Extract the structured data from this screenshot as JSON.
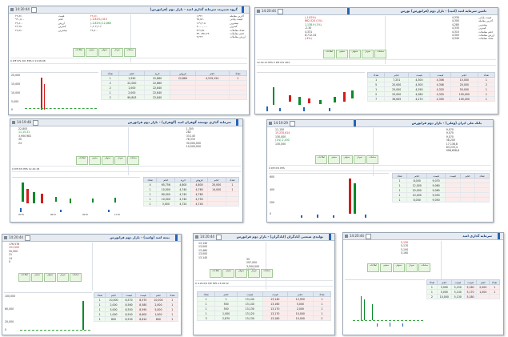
{
  "panels": [
    {
      "id": "p1",
      "time": "14:20:44",
      "title": "گروه مدیریت سرمایه گذاری امید - بازار دوم (فرابورس)",
      "session": "14:20:44"
    },
    {
      "id": "p2",
      "time": "14:20:44",
      "title": "تامین سرمایه امید (امید) - بازار دوم (فرابورس) بورس",
      "session": "14:20:44"
    },
    {
      "id": "p3",
      "time": "14:19:48",
      "title": "سرمایه گذاری توسعه گوهران امید (گوهران) - بازار دوم فرابورس",
      "session": "14:19:48"
    },
    {
      "id": "p4",
      "time": "14:19:29",
      "title": "بانک ملی ایران (وملی) - بازار دوم فرابورس",
      "session": "14:19:29"
    },
    {
      "id": "p5",
      "time": "14:20:44",
      "title": "بیمه امید (وامید) - بازار دوم فرابورس",
      "session": "14:20:44"
    },
    {
      "id": "p6",
      "time": "14:20:44",
      "title": "تولیدی صنعتی آبادگران (ابادگران) - بازار دوم فرابورس",
      "session": "14:20:44"
    },
    {
      "id": "p7",
      "time": "14:20:44",
      "title": "سرمایه گذاری امید",
      "session": "14:20:44"
    }
  ],
  "p1": {
    "left": [
      "قیمت",
      "حجم",
      "ارزش",
      "کمترین",
      "بیشترین"
    ],
    "leftVals": [
      "۲۲,۸۶۰",
      "۹۹۰,۵۰۰",
      "۲۲,۸۰۰",
      "۲۲,۹۸۰",
      "۲۲,۸۶۰"
    ],
    "midVals": [
      "۲۲,۸۶۰",
      "(-1.82%)  415",
      "(-1.82%) 12,860",
      "۱,۲۰۴,۲۰۲",
      "۲۲,۸۰۰"
    ],
    "right": [
      "آخرین معامله",
      "قیمت پایانی",
      "بیشترین",
      "کمترین",
      "تعداد معاملات",
      "حجم معاملات",
      "ارزش معاملات"
    ],
    "rightVals": [
      "۱,۳۲۱",
      "۲۵,۸۷۰",
      "۱۶۹,۴۰۵",
      "۳,۰۰۰,۰۰۰",
      "۳۶۹,۴۵۰",
      "۳۳۰,۳۵۶,۲۴۰",
      "۲,۲۲۲"
    ],
    "tabs": [
      "اطلاعات",
      "حقیقی",
      "حقوقی",
      "نمودار",
      "معاملات"
    ],
    "strip": "0   P/E   P/S   201   EPS   0   13.08.98",
    "obHead": [
      "تعداد",
      "حجم",
      "خرید",
      "فروش",
      "حجم",
      "تعداد"
    ],
    "obRows": [
      [
        "1",
        "1,590",
        "22,860",
        "22,860",
        "4,519,154",
        "1"
      ],
      [
        "2",
        "22,000",
        "22,860",
        "",
        "",
        ""
      ],
      [
        "2",
        "1,000",
        "22,840",
        "",
        "",
        ""
      ],
      [
        "1",
        "2,000",
        "22,840",
        "",
        "",
        ""
      ],
      [
        "2",
        "99,843",
        "22,840",
        "",
        "",
        ""
      ]
    ],
    "yticks": [
      "20,000",
      "15,000",
      "10,000",
      "5,000",
      "0"
    ]
  },
  "p2": {
    "left": [
      "قیمت پایانی",
      "آخرین معامله",
      "بیشترین",
      "کمترین",
      "حجم معاملات",
      "ارزش معاملات",
      "تعداد معاملات"
    ],
    "rightVals": [
      "4,330",
      "4,300",
      "4,280",
      "4,330",
      "4,310",
      "4,300",
      "4,340"
    ],
    "midVals": [
      "(-1.62%)",
      "862,524 (1%)",
      "1,138.9 (1%)",
      "-2.30",
      "4,331",
      "8,712.34",
      "(-4%)"
    ],
    "tabs": [
      "اطلاعات",
      "حقیقی",
      "حقوقی",
      "نمودار",
      "معاملات"
    ],
    "strip": "12.29.13   EPS   0   P/E   P/S   CR2",
    "obHead": [
      "تعداد",
      "حجم",
      "قیمت",
      "قیمت",
      "حجم",
      "تعداد"
    ],
    "obRows": [
      [
        "1",
        "7,251",
        "4,300",
        "4,306",
        "10,000",
        "1"
      ],
      [
        "5",
        "20,000",
        "4,300",
        "4,306",
        "20,000",
        "2"
      ],
      [
        "1",
        "25,000",
        "4,290",
        "4,320",
        "50,000",
        "1"
      ],
      [
        "2",
        "25,000",
        "4,280",
        "4,320",
        "100,000",
        "1"
      ],
      [
        "7",
        "36,645",
        "4,270",
        "4,300",
        "100,000",
        "1"
      ]
    ]
  },
  "p3": {
    "leftVals": [
      "22,805",
      "11,15,31",
      "3,950,981",
      "30",
      "24"
    ],
    "rightVals": [
      "1,305",
      "282",
      "33,145",
      "76,333",
      "30,000,000",
      "10,000,000"
    ],
    "tabs": [
      "اطلاعات",
      "حقیقی",
      "حقوقی",
      "نمودار",
      "معاملات"
    ],
    "strip": "0   P/E   P/S   EPS   12.29.18",
    "obHead": [
      "تعداد",
      "حجم",
      "خرید",
      "فروش",
      "حجم",
      "تعداد"
    ],
    "obRows": [
      [
        "4",
        "65,756",
        "4,800",
        "4,800",
        "20,000",
        "1"
      ],
      [
        "1",
        "10,000",
        "4,740",
        "4,760",
        "14,000",
        "1"
      ],
      [
        "1",
        "80,000",
        "4,740",
        "4,760",
        "",
        ""
      ],
      [
        "1",
        "10,000",
        "4,740",
        "4,750",
        "",
        ""
      ],
      [
        "1",
        "3,000",
        "4,720",
        "4,740",
        "",
        ""
      ]
    ],
    "xticks": [
      "05:55",
      "06:40",
      "07:15",
      "07:48",
      "08:15",
      "08:40",
      "09:05",
      "09:30",
      "09:55",
      "10:20",
      "10:45",
      "11:10",
      "11:35",
      "12:00",
      "12:25"
    ]
  },
  "p4": {
    "leftVals": [
      "11,150",
      "15,235,614",
      "130,000",
      "(1%) 2,430",
      "130,000"
    ],
    "rightVals": [
      "9,070",
      "9,070",
      "9,070",
      "38,200",
      "17,138,8",
      "83,233,4",
      "998,658,8"
    ],
    "tabs": [
      "اطلاعات",
      "حقیقی",
      "حقوقی",
      "نمودار",
      "معاملات"
    ],
    "strip": "0   P/E   P/S   EPS",
    "obHead": [
      "تعداد",
      "حجم",
      "قیمت",
      "قیمت",
      "حجم",
      "تعداد"
    ],
    "obRows": [
      [
        "1",
        "8,000",
        "9,070",
        "",
        "",
        ""
      ],
      [
        "1",
        "12,000",
        "9,060",
        "",
        "",
        ""
      ],
      [
        "1",
        "20,000",
        "9,060",
        "",
        "",
        ""
      ],
      [
        "1",
        "10,000",
        "9,050",
        "",
        "",
        ""
      ],
      [
        "1",
        "8,000",
        "9,050",
        "",
        "",
        ""
      ]
    ],
    "yticks": [
      "600",
      "500",
      "400",
      "300",
      "200",
      "100",
      "0"
    ]
  },
  "p5": {
    "leftVals": [
      "176,576",
      "151,000",
      "20,000",
      "21",
      "14",
      "0"
    ],
    "tabs": [
      "اطلاعات",
      "حقیقی",
      "حقوقی",
      "نمودار",
      "معاملات"
    ],
    "obHead": [
      "تعداد",
      "حجم",
      "قیمت",
      "قیمت",
      "حجم",
      "تعداد"
    ],
    "obRows": [
      [
        "1",
        "10,000",
        "8,570",
        "8,570",
        "10,000",
        "1"
      ],
      [
        "1",
        "2,000",
        "8,560",
        "8,580",
        "2,000",
        "1"
      ],
      [
        "1",
        "5,000",
        "8,550",
        "8,590",
        "5,000",
        "1"
      ],
      [
        "1",
        "1,000",
        "8,540",
        "8,600",
        "1,000",
        "1"
      ],
      [
        "1",
        "800",
        "8,530",
        "8,610",
        "800",
        "1"
      ]
    ],
    "yticks": [
      "100,000",
      "80,000",
      "60,000",
      "40,000",
      "20,000",
      "0"
    ]
  },
  "p6": {
    "leftVals": [
      "13,140",
      "13,000",
      "13,460",
      "13,000",
      "13,140"
    ],
    "rightVals": [
      "35",
      "297,000",
      "3,500,000",
      "10,000"
    ],
    "tabs": [
      "اطلاعات",
      "حقیقی",
      "حقوقی",
      "نمودار",
      "معاملات"
    ],
    "strip": "0   4.26   P/S   P/E   EPS   13.08.52",
    "obHead": [
      "تعداد",
      "حجم",
      "قیمت",
      "قیمت",
      "حجم",
      "تعداد"
    ],
    "obRows": [
      [
        "1",
        "1",
        "13,140",
        "13,140",
        "12,950",
        "1"
      ],
      [
        "1",
        "500",
        "13,140",
        "13,160",
        "5,000",
        "1"
      ],
      [
        "1",
        "500",
        "13,130",
        "13,170",
        "2,000",
        "1"
      ],
      [
        "1",
        "1,000",
        "13,120",
        "13,170",
        "10,000",
        "1"
      ],
      [
        "3",
        "2,870",
        "13,130",
        "13,180",
        "15,000",
        "2"
      ]
    ]
  },
  "p7": {
    "leftVals": [
      "5,150",
      "5,170",
      "5,100",
      "5,160"
    ],
    "tabs": [
      "اطلاعات",
      "حقیقی",
      "حقوقی",
      "نمودار",
      "معاملات"
    ],
    "obHead": [
      "تعداد",
      "حجم",
      "قیمت",
      "قیمت",
      "حجم",
      "تعداد"
    ],
    "obRows": [
      [
        "1",
        "3,000",
        "5,150",
        "5,160",
        "2,000",
        "1"
      ],
      [
        "1",
        "5,000",
        "5,140",
        "5,170",
        "1,000",
        "1"
      ],
      [
        "2",
        "10,000",
        "5,130",
        "5,180",
        "",
        ""
      ]
    ]
  }
}
